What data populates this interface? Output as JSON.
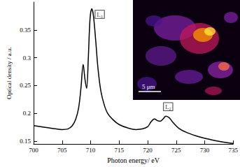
{
  "chart_data": {
    "type": "line",
    "x_label": "Photon energy/ eV",
    "y_label": "Optical density / a.u.",
    "x": [
      700,
      702,
      704,
      705,
      706,
      706.8,
      707.4,
      707.9,
      708.3,
      708.7,
      709.0,
      709.3,
      709.6,
      709.9,
      710.2,
      710.5,
      710.9,
      711.3,
      711.8,
      712.4,
      713.0,
      714.0,
      715.0,
      716.5,
      718.0,
      719.0,
      720.0,
      720.6,
      721.2,
      721.7,
      722.2,
      722.7,
      723.2,
      723.8,
      724.5,
      725.5,
      727.0,
      729.0,
      731.0,
      733.0,
      735.0
    ],
    "values": [
      0.178,
      0.175,
      0.172,
      0.171,
      0.172,
      0.178,
      0.19,
      0.21,
      0.245,
      0.288,
      0.262,
      0.245,
      0.3,
      0.37,
      0.388,
      0.375,
      0.33,
      0.28,
      0.24,
      0.215,
      0.2,
      0.188,
      0.18,
      0.174,
      0.171,
      0.172,
      0.176,
      0.185,
      0.19,
      0.187,
      0.186,
      0.19,
      0.195,
      0.192,
      0.183,
      0.173,
      0.165,
      0.158,
      0.153,
      0.149,
      0.146
    ],
    "color": "#000000",
    "xlim": [
      700,
      735
    ],
    "xticks": [
      700,
      705,
      710,
      715,
      720,
      725,
      730,
      735
    ],
    "ylim": [
      0.145,
      0.4
    ],
    "yticks": [
      0.15,
      0.2,
      0.25,
      0.3,
      0.35
    ],
    "grid": false,
    "annotations": [
      {
        "text": "L₃",
        "x": 711.6,
        "y": 0.378
      },
      {
        "text": "L₂",
        "x": 723.6,
        "y": 0.212
      }
    ],
    "inset_scale_bar": "5 μm"
  }
}
